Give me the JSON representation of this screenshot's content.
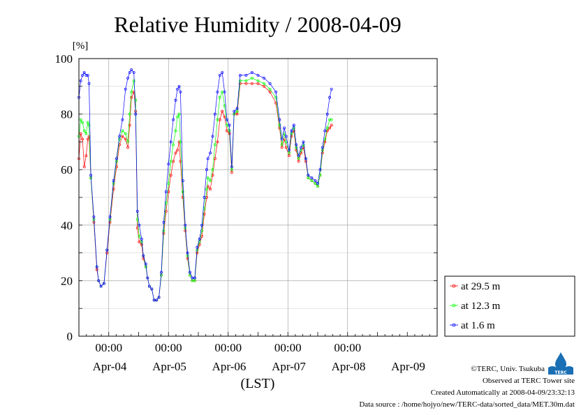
{
  "chart_data": {
    "type": "line",
    "title": "Relative Humidity / 2008-04-09",
    "ylabel": "[%]",
    "xlabel": "(LST)",
    "ylim": [
      0,
      100
    ],
    "xlim": [
      -0.5,
      5.5
    ],
    "yticks": [
      "0",
      "20",
      "40",
      "60",
      "80",
      "100"
    ],
    "hour_ticks": [
      {
        "x": 0,
        "label": "00:00"
      },
      {
        "x": 1,
        "label": "00:00"
      },
      {
        "x": 2,
        "label": "00:00"
      },
      {
        "x": 3,
        "label": "00:00"
      },
      {
        "x": 4,
        "label": "00:00"
      }
    ],
    "day_labels": [
      {
        "x": -0.5,
        "label": "Apr-04"
      },
      {
        "x": 0.5,
        "label": "Apr-05"
      },
      {
        "x": 1.5,
        "label": "Apr-06"
      },
      {
        "x": 2.5,
        "label": "Apr-07"
      },
      {
        "x": 3.5,
        "label": "Apr-08"
      },
      {
        "x": 4.5,
        "label": "Apr-09"
      }
    ],
    "grid": true,
    "legend_position": "right",
    "series": [
      {
        "name": "at 29.5 m",
        "color": "#ff0000",
        "points": [
          [
            -0.5,
            64
          ],
          [
            -0.47,
            73
          ],
          [
            -0.44,
            71
          ],
          [
            -0.41,
            61
          ],
          [
            -0.38,
            65
          ],
          [
            -0.35,
            71
          ],
          [
            -0.33,
            72
          ],
          [
            -0.3,
            57
          ],
          [
            -0.25,
            41
          ],
          [
            -0.2,
            24
          ],
          [
            -0.17,
            20
          ],
          [
            -0.13,
            18
          ],
          [
            -0.08,
            19
          ],
          [
            -0.03,
            30
          ],
          [
            0.02,
            41
          ],
          [
            0.08,
            53
          ],
          [
            0.13,
            61
          ],
          [
            0.18,
            69
          ],
          [
            0.23,
            72
          ],
          [
            0.28,
            71
          ],
          [
            0.32,
            68
          ],
          [
            0.35,
            76
          ],
          [
            0.38,
            86
          ],
          [
            0.42,
            88
          ],
          [
            0.45,
            81
          ],
          [
            0.48,
            39
          ],
          [
            0.51,
            34
          ],
          [
            0.55,
            33
          ],
          [
            0.58,
            28
          ],
          [
            0.62,
            25
          ],
          [
            0.65,
            21
          ],
          [
            0.68,
            18
          ],
          [
            0.72,
            17
          ],
          [
            0.76,
            13
          ],
          [
            0.8,
            13
          ],
          [
            0.84,
            14
          ],
          [
            0.88,
            22
          ],
          [
            0.92,
            37
          ],
          [
            0.96,
            45
          ],
          [
            1.0,
            52
          ],
          [
            1.04,
            58
          ],
          [
            1.08,
            63
          ],
          [
            1.12,
            66
          ],
          [
            1.15,
            67
          ],
          [
            1.18,
            70
          ],
          [
            1.2,
            63
          ],
          [
            1.24,
            50
          ],
          [
            1.28,
            38
          ],
          [
            1.32,
            28
          ],
          [
            1.36,
            22
          ],
          [
            1.4,
            20
          ],
          [
            1.44,
            20
          ],
          [
            1.48,
            30
          ],
          [
            1.52,
            33
          ],
          [
            1.56,
            36
          ],
          [
            1.6,
            44
          ],
          [
            1.64,
            50
          ],
          [
            1.66,
            54
          ],
          [
            1.7,
            53
          ],
          [
            1.74,
            58
          ],
          [
            1.78,
            64
          ],
          [
            1.82,
            70
          ],
          [
            1.86,
            78
          ],
          [
            1.9,
            81
          ],
          [
            1.94,
            79
          ],
          [
            1.98,
            74
          ],
          [
            2.02,
            73
          ],
          [
            2.06,
            59
          ],
          [
            2.1,
            80
          ],
          [
            2.15,
            80
          ],
          [
            2.2,
            91
          ],
          [
            2.3,
            91
          ],
          [
            2.4,
            91
          ],
          [
            2.5,
            91
          ],
          [
            2.6,
            90
          ],
          [
            2.7,
            88
          ],
          [
            2.8,
            84
          ],
          [
            2.86,
            75
          ],
          [
            2.9,
            68
          ],
          [
            2.94,
            71
          ],
          [
            2.97,
            68
          ],
          [
            3.02,
            65
          ],
          [
            3.06,
            72
          ],
          [
            3.1,
            74
          ],
          [
            3.14,
            67
          ],
          [
            3.18,
            63
          ],
          [
            3.22,
            66
          ],
          [
            3.26,
            68
          ],
          [
            3.3,
            63
          ],
          [
            3.34,
            57
          ],
          [
            3.4,
            56
          ],
          [
            3.46,
            55
          ],
          [
            3.5,
            54
          ],
          [
            3.54,
            58
          ],
          [
            3.58,
            66
          ],
          [
            3.62,
            70
          ],
          [
            3.66,
            74
          ],
          [
            3.7,
            75
          ],
          [
            3.73,
            76
          ]
        ]
      },
      {
        "name": "at 12.3 m",
        "color": "#00ff00",
        "points": [
          [
            -0.5,
            72
          ],
          [
            -0.47,
            78
          ],
          [
            -0.44,
            77
          ],
          [
            -0.41,
            74
          ],
          [
            -0.38,
            73
          ],
          [
            -0.35,
            77
          ],
          [
            -0.33,
            76
          ],
          [
            -0.3,
            57
          ],
          [
            -0.25,
            42
          ],
          [
            -0.2,
            25
          ],
          [
            -0.17,
            20
          ],
          [
            -0.13,
            18
          ],
          [
            -0.08,
            19
          ],
          [
            -0.03,
            31
          ],
          [
            0.02,
            42
          ],
          [
            0.08,
            55
          ],
          [
            0.13,
            63
          ],
          [
            0.18,
            71
          ],
          [
            0.23,
            74
          ],
          [
            0.28,
            73
          ],
          [
            0.32,
            70
          ],
          [
            0.35,
            80
          ],
          [
            0.38,
            88
          ],
          [
            0.42,
            92
          ],
          [
            0.45,
            85
          ],
          [
            0.48,
            42
          ],
          [
            0.51,
            36
          ],
          [
            0.55,
            34
          ],
          [
            0.58,
            29
          ],
          [
            0.62,
            25
          ],
          [
            0.65,
            21
          ],
          [
            0.68,
            18
          ],
          [
            0.72,
            17
          ],
          [
            0.76,
            13
          ],
          [
            0.8,
            13
          ],
          [
            0.84,
            14
          ],
          [
            0.88,
            22
          ],
          [
            0.92,
            38
          ],
          [
            0.96,
            48
          ],
          [
            1.0,
            55
          ],
          [
            1.04,
            63
          ],
          [
            1.08,
            69
          ],
          [
            1.12,
            74
          ],
          [
            1.15,
            79
          ],
          [
            1.18,
            80
          ],
          [
            1.2,
            70
          ],
          [
            1.24,
            52
          ],
          [
            1.28,
            39
          ],
          [
            1.32,
            29
          ],
          [
            1.36,
            22
          ],
          [
            1.4,
            20
          ],
          [
            1.44,
            20
          ],
          [
            1.48,
            31
          ],
          [
            1.52,
            34
          ],
          [
            1.56,
            38
          ],
          [
            1.6,
            46
          ],
          [
            1.64,
            53
          ],
          [
            1.66,
            57
          ],
          [
            1.7,
            56
          ],
          [
            1.74,
            60
          ],
          [
            1.78,
            69
          ],
          [
            1.82,
            78
          ],
          [
            1.86,
            86
          ],
          [
            1.9,
            88
          ],
          [
            1.94,
            83
          ],
          [
            1.98,
            76
          ],
          [
            2.02,
            74
          ],
          [
            2.06,
            60
          ],
          [
            2.1,
            80
          ],
          [
            2.15,
            81
          ],
          [
            2.2,
            92
          ],
          [
            2.3,
            92
          ],
          [
            2.4,
            93
          ],
          [
            2.5,
            92
          ],
          [
            2.6,
            91
          ],
          [
            2.7,
            89
          ],
          [
            2.8,
            86
          ],
          [
            2.86,
            76
          ],
          [
            2.9,
            69
          ],
          [
            2.94,
            73
          ],
          [
            2.97,
            70
          ],
          [
            3.02,
            66
          ],
          [
            3.06,
            73
          ],
          [
            3.1,
            75
          ],
          [
            3.14,
            68
          ],
          [
            3.18,
            64
          ],
          [
            3.22,
            67
          ],
          [
            3.26,
            69
          ],
          [
            3.3,
            64
          ],
          [
            3.34,
            57
          ],
          [
            3.4,
            56
          ],
          [
            3.46,
            55
          ],
          [
            3.5,
            54
          ],
          [
            3.54,
            58
          ],
          [
            3.58,
            67
          ],
          [
            3.62,
            71
          ],
          [
            3.66,
            75
          ],
          [
            3.7,
            78
          ],
          [
            3.73,
            78
          ]
        ]
      },
      {
        "name": "at 1.6 m",
        "color": "#0000ff",
        "points": [
          [
            -0.5,
            86
          ],
          [
            -0.47,
            92
          ],
          [
            -0.44,
            94
          ],
          [
            -0.41,
            95
          ],
          [
            -0.38,
            94
          ],
          [
            -0.35,
            94
          ],
          [
            -0.33,
            91
          ],
          [
            -0.3,
            58
          ],
          [
            -0.25,
            43
          ],
          [
            -0.2,
            25
          ],
          [
            -0.17,
            20
          ],
          [
            -0.13,
            18
          ],
          [
            -0.08,
            19
          ],
          [
            -0.03,
            31
          ],
          [
            0.02,
            43
          ],
          [
            0.08,
            56
          ],
          [
            0.13,
            64
          ],
          [
            0.18,
            72
          ],
          [
            0.23,
            78
          ],
          [
            0.28,
            89
          ],
          [
            0.32,
            93
          ],
          [
            0.35,
            95
          ],
          [
            0.38,
            96
          ],
          [
            0.42,
            95
          ],
          [
            0.45,
            80
          ],
          [
            0.48,
            45
          ],
          [
            0.51,
            40
          ],
          [
            0.55,
            35
          ],
          [
            0.58,
            29
          ],
          [
            0.62,
            26
          ],
          [
            0.65,
            21
          ],
          [
            0.68,
            18
          ],
          [
            0.72,
            17
          ],
          [
            0.76,
            13
          ],
          [
            0.8,
            13
          ],
          [
            0.84,
            14
          ],
          [
            0.88,
            23
          ],
          [
            0.92,
            41
          ],
          [
            0.96,
            52
          ],
          [
            1.0,
            62
          ],
          [
            1.04,
            70
          ],
          [
            1.08,
            78
          ],
          [
            1.12,
            85
          ],
          [
            1.15,
            89
          ],
          [
            1.18,
            90
          ],
          [
            1.2,
            88
          ],
          [
            1.24,
            56
          ],
          [
            1.28,
            40
          ],
          [
            1.32,
            30
          ],
          [
            1.36,
            23
          ],
          [
            1.4,
            21
          ],
          [
            1.44,
            21
          ],
          [
            1.48,
            32
          ],
          [
            1.52,
            35
          ],
          [
            1.56,
            40
          ],
          [
            1.6,
            50
          ],
          [
            1.64,
            60
          ],
          [
            1.66,
            64
          ],
          [
            1.7,
            66
          ],
          [
            1.74,
            72
          ],
          [
            1.78,
            80
          ],
          [
            1.82,
            88
          ],
          [
            1.86,
            94
          ],
          [
            1.9,
            95
          ],
          [
            1.94,
            88
          ],
          [
            1.98,
            78
          ],
          [
            2.02,
            76
          ],
          [
            2.06,
            61
          ],
          [
            2.1,
            81
          ],
          [
            2.15,
            82
          ],
          [
            2.2,
            94
          ],
          [
            2.3,
            94
          ],
          [
            2.4,
            95
          ],
          [
            2.5,
            94
          ],
          [
            2.6,
            93
          ],
          [
            2.7,
            91
          ],
          [
            2.8,
            88
          ],
          [
            2.86,
            78
          ],
          [
            2.9,
            71
          ],
          [
            2.94,
            75
          ],
          [
            2.97,
            72
          ],
          [
            3.02,
            67
          ],
          [
            3.06,
            74
          ],
          [
            3.1,
            76
          ],
          [
            3.14,
            69
          ],
          [
            3.18,
            65
          ],
          [
            3.22,
            68
          ],
          [
            3.26,
            70
          ],
          [
            3.3,
            64
          ],
          [
            3.34,
            58
          ],
          [
            3.4,
            57
          ],
          [
            3.46,
            56
          ],
          [
            3.5,
            55
          ],
          [
            3.54,
            60
          ],
          [
            3.58,
            68
          ],
          [
            3.62,
            74
          ],
          [
            3.66,
            80
          ],
          [
            3.7,
            86
          ],
          [
            3.73,
            89
          ]
        ]
      }
    ]
  },
  "footer": {
    "copyright": "©TERC, Univ. Tsukuba",
    "site": "Observed at TERC Tower site",
    "created": "Created Automatically at 2008-04-09/23:32:13",
    "source": "Data source : /home/hojyo/new/TERC-data/sorted_data/MET.30m.dat"
  },
  "logo": {
    "text": "TERC",
    "color": "#1a6fb5"
  }
}
